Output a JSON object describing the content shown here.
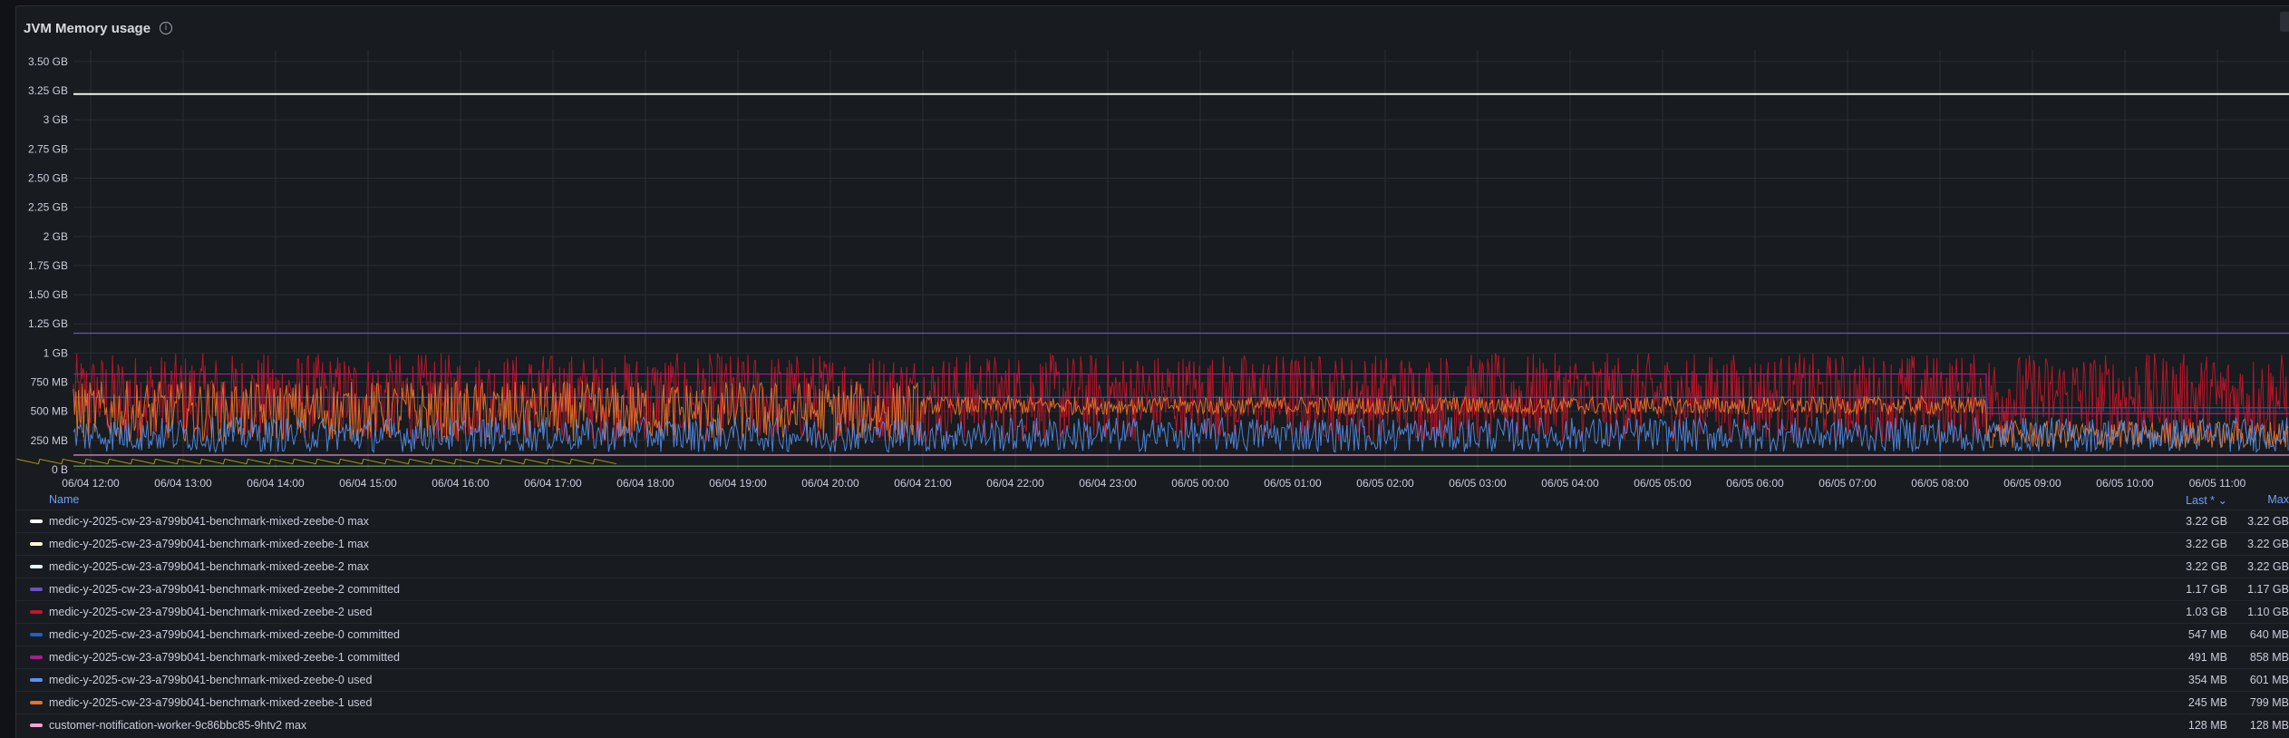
{
  "panel": {
    "title": "JVM Memory usage"
  },
  "legend_header": {
    "name": "Name",
    "last": "Last * ⌄",
    "max": "Max"
  },
  "chart_data": {
    "type": "line",
    "title": "JVM Memory usage",
    "y_ticks": [
      "0 B",
      "250 MB",
      "500 MB",
      "750 MB",
      "1 GB",
      "1.25 GB",
      "1.50 GB",
      "1.75 GB",
      "2 GB",
      "2.25 GB",
      "2.50 GB",
      "2.75 GB",
      "3 GB",
      "3.25 GB",
      "3.50 GB"
    ],
    "ylim_gb": [
      0,
      3.6
    ],
    "x_ticks": [
      "06/04 12:00",
      "06/04 13:00",
      "06/04 14:00",
      "06/04 15:00",
      "06/04 16:00",
      "06/04 17:00",
      "06/04 18:00",
      "06/04 19:00",
      "06/04 20:00",
      "06/04 21:00",
      "06/04 22:00",
      "06/04 23:00",
      "06/05 00:00",
      "06/05 01:00",
      "06/05 02:00",
      "06/05 03:00",
      "06/05 04:00",
      "06/05 05:00",
      "06/05 06:00",
      "06/05 07:00",
      "06/05 08:00",
      "06/05 09:00",
      "06/05 10:00",
      "06/05 11:00"
    ],
    "grid": true,
    "legend_placement": "bottom",
    "series": [
      {
        "name": "medic-y-2025-cw-23-a799b041-benchmark-mixed-zeebe-0 max",
        "last": "3.22 GB",
        "max": "3.22 GB",
        "color": "#ffffff"
      },
      {
        "name": "medic-y-2025-cw-23-a799b041-benchmark-mixed-zeebe-1 max",
        "last": "3.22 GB",
        "max": "3.22 GB",
        "color": "#fffacd"
      },
      {
        "name": "medic-y-2025-cw-23-a799b041-benchmark-mixed-zeebe-2 max",
        "last": "3.22 GB",
        "max": "3.22 GB",
        "color": "#e8f8ff"
      },
      {
        "name": "medic-y-2025-cw-23-a799b041-benchmark-mixed-zeebe-2 committed",
        "last": "1.17 GB",
        "max": "1.17 GB",
        "color": "#6b4fc7"
      },
      {
        "name": "medic-y-2025-cw-23-a799b041-benchmark-mixed-zeebe-2 used",
        "last": "1.03 GB",
        "max": "1.10 GB",
        "color": "#c4162a"
      },
      {
        "name": "medic-y-2025-cw-23-a799b041-benchmark-mixed-zeebe-0 committed",
        "last": "547 MB",
        "max": "640 MB",
        "color": "#1f60c4"
      },
      {
        "name": "medic-y-2025-cw-23-a799b041-benchmark-mixed-zeebe-1 committed",
        "last": "491 MB",
        "max": "858 MB",
        "color": "#a1208e"
      },
      {
        "name": "medic-y-2025-cw-23-a799b041-benchmark-mixed-zeebe-0 used",
        "last": "354 MB",
        "max": "601 MB",
        "color": "#5794f2"
      },
      {
        "name": "medic-y-2025-cw-23-a799b041-benchmark-mixed-zeebe-1 used",
        "last": "245 MB",
        "max": "799 MB",
        "color": "#e0752d"
      },
      {
        "name": "customer-notification-worker-9c86bbc85-9htv2 max",
        "last": "128 MB",
        "max": "128 MB",
        "color": "#f2a3d8"
      }
    ]
  }
}
